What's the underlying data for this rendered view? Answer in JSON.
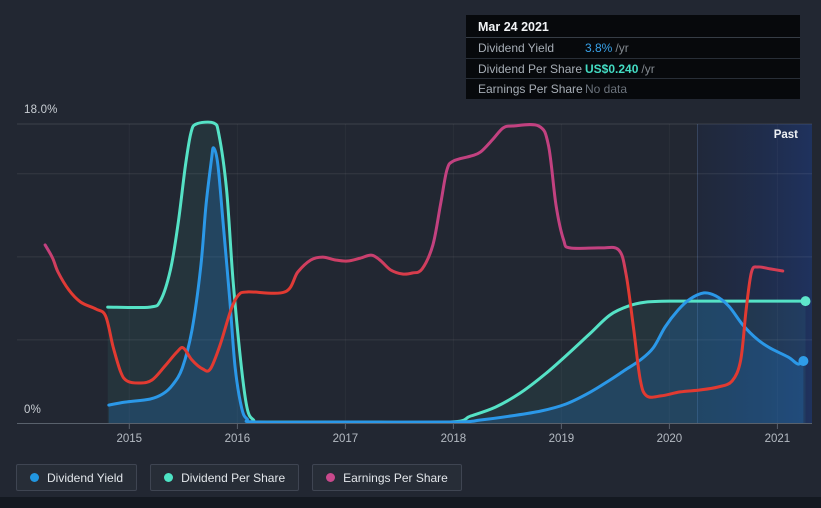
{
  "labels": {
    "past": "Past",
    "y_max": "18.0%",
    "y_min": "0%"
  },
  "tooltip": {
    "date": "Mar 24 2021",
    "rows": [
      {
        "label": "Dividend Yield",
        "value": "3.8%",
        "suffix": "/yr",
        "value_color": "#38a1e8",
        "bold": false
      },
      {
        "label": "Dividend Per Share",
        "value": "US$0.240",
        "suffix": "/yr",
        "value_color": "#43dcc3",
        "bold": true
      },
      {
        "label": "Earnings Per Share",
        "value": "No data",
        "suffix": "",
        "value_color": "#6b727b",
        "bold": false
      }
    ]
  },
  "legend": [
    {
      "label": "Dividend Yield",
      "color": "#2196e0"
    },
    {
      "label": "Dividend Per Share",
      "color": "#4de3c4"
    },
    {
      "label": "Earnings Per Share",
      "color": "#c9498c"
    }
  ],
  "chart_data": {
    "type": "line",
    "title": "",
    "xlabel": "",
    "ylabel": "percent (dividend yield axis)",
    "x_range": [
      2013.96,
      2021.32
    ],
    "y_range": [
      0,
      18
    ],
    "y_gridlines": [
      5,
      10,
      15,
      18
    ],
    "x_ticks": [
      {
        "year": 2015,
        "label": "2015"
      },
      {
        "year": 2016,
        "label": "2016"
      },
      {
        "year": 2017,
        "label": "2017"
      },
      {
        "year": 2018,
        "label": "2018"
      },
      {
        "year": 2019,
        "label": "2019"
      },
      {
        "year": 2020,
        "label": "2020"
      },
      {
        "year": 2021,
        "label": "2021"
      }
    ],
    "past_band_start": 2020.26,
    "colors": {
      "dividend_yield": "#2b98e8",
      "dividend_per_share": "#55e2c6",
      "eps_high": "#c24180",
      "eps_low": "#e23a31",
      "yield_fill": "rgba(30,120,200,0.26)",
      "dps_fill": "rgba(85,226,198,0.07)",
      "band_from": "rgba(20,50,120,0.12)",
      "band_to": "rgba(25,70,175,0.35)"
    },
    "series": [
      {
        "name": "Dividend Per Share",
        "unit": "visual % on yield axis (latest = US$0.240/yr)",
        "end_marker": true,
        "dot_color": "#5ee6cb",
        "points": [
          [
            2014.8,
            6.98
          ],
          [
            2015.19,
            6.98
          ],
          [
            2015.29,
            7.4
          ],
          [
            2015.38,
            9.21
          ],
          [
            2015.45,
            11.92
          ],
          [
            2015.52,
            15.53
          ],
          [
            2015.57,
            17.46
          ],
          [
            2015.62,
            18.0
          ],
          [
            2015.78,
            18.06
          ],
          [
            2015.83,
            17.34
          ],
          [
            2015.9,
            14.03
          ],
          [
            2015.96,
            8.61
          ],
          [
            2016.03,
            3.79
          ],
          [
            2016.09,
            0.9
          ],
          [
            2016.15,
            0.18
          ],
          [
            2016.21,
            0.06
          ],
          [
            2017.05,
            0.06
          ],
          [
            2017.97,
            0.06
          ],
          [
            2018.16,
            0.42
          ],
          [
            2018.39,
            0.96
          ],
          [
            2018.62,
            1.81
          ],
          [
            2018.85,
            2.95
          ],
          [
            2019.08,
            4.27
          ],
          [
            2019.27,
            5.42
          ],
          [
            2019.45,
            6.5
          ],
          [
            2019.62,
            7.04
          ],
          [
            2019.78,
            7.28
          ],
          [
            2020.01,
            7.34
          ],
          [
            2020.6,
            7.34
          ],
          [
            2021.26,
            7.34
          ]
        ]
      },
      {
        "name": "Dividend Yield",
        "unit": "%",
        "end_marker": true,
        "dot_color": "#2f9ce8",
        "points": [
          [
            2014.81,
            1.08
          ],
          [
            2014.96,
            1.26
          ],
          [
            2015.19,
            1.44
          ],
          [
            2015.31,
            1.75
          ],
          [
            2015.4,
            2.29
          ],
          [
            2015.49,
            3.31
          ],
          [
            2015.58,
            5.6
          ],
          [
            2015.66,
            9.33
          ],
          [
            2015.71,
            13.12
          ],
          [
            2015.76,
            15.83
          ],
          [
            2015.78,
            16.56
          ],
          [
            2015.82,
            15.53
          ],
          [
            2015.87,
            11.92
          ],
          [
            2015.93,
            7.4
          ],
          [
            2015.98,
            3.31
          ],
          [
            2016.04,
            0.9
          ],
          [
            2016.09,
            0.24
          ],
          [
            2016.17,
            0.06
          ],
          [
            2017.0,
            0.06
          ],
          [
            2018.02,
            0.06
          ],
          [
            2018.25,
            0.18
          ],
          [
            2018.53,
            0.42
          ],
          [
            2018.81,
            0.72
          ],
          [
            2019.04,
            1.14
          ],
          [
            2019.27,
            1.87
          ],
          [
            2019.45,
            2.59
          ],
          [
            2019.59,
            3.19
          ],
          [
            2019.73,
            3.79
          ],
          [
            2019.85,
            4.52
          ],
          [
            2019.96,
            5.78
          ],
          [
            2020.08,
            6.8
          ],
          [
            2020.19,
            7.46
          ],
          [
            2020.32,
            7.83
          ],
          [
            2020.43,
            7.65
          ],
          [
            2020.55,
            7.04
          ],
          [
            2020.68,
            5.9
          ],
          [
            2020.82,
            5.0
          ],
          [
            2020.95,
            4.45
          ],
          [
            2021.1,
            3.97
          ],
          [
            2021.19,
            3.55
          ],
          [
            2021.24,
            3.73
          ]
        ]
      },
      {
        "name": "Earnings Per Share",
        "unit": "visual % on yield axis (latest = No data)",
        "end_marker": false,
        "points": [
          [
            2014.22,
            10.72
          ],
          [
            2014.29,
            9.93
          ],
          [
            2014.34,
            9.09
          ],
          [
            2014.44,
            8.01
          ],
          [
            2014.55,
            7.28
          ],
          [
            2014.69,
            6.86
          ],
          [
            2014.78,
            6.44
          ],
          [
            2014.85,
            4.58
          ],
          [
            2014.92,
            3.07
          ],
          [
            2014.98,
            2.53
          ],
          [
            2015.1,
            2.41
          ],
          [
            2015.21,
            2.59
          ],
          [
            2015.33,
            3.43
          ],
          [
            2015.44,
            4.27
          ],
          [
            2015.5,
            4.52
          ],
          [
            2015.58,
            3.79
          ],
          [
            2015.68,
            3.25
          ],
          [
            2015.75,
            3.25
          ],
          [
            2015.84,
            4.7
          ],
          [
            2015.94,
            6.8
          ],
          [
            2016.01,
            7.7
          ],
          [
            2016.1,
            7.89
          ],
          [
            2016.44,
            7.89
          ],
          [
            2016.56,
            9.09
          ],
          [
            2016.68,
            9.81
          ],
          [
            2016.79,
            9.99
          ],
          [
            2016.91,
            9.81
          ],
          [
            2017.02,
            9.75
          ],
          [
            2017.14,
            9.93
          ],
          [
            2017.24,
            10.11
          ],
          [
            2017.32,
            9.81
          ],
          [
            2017.42,
            9.21
          ],
          [
            2017.53,
            8.97
          ],
          [
            2017.62,
            9.03
          ],
          [
            2017.71,
            9.27
          ],
          [
            2017.81,
            10.72
          ],
          [
            2017.88,
            13.12
          ],
          [
            2017.94,
            15.23
          ],
          [
            2018.0,
            15.77
          ],
          [
            2018.16,
            16.07
          ],
          [
            2018.25,
            16.31
          ],
          [
            2018.36,
            17.04
          ],
          [
            2018.46,
            17.76
          ],
          [
            2018.55,
            17.88
          ],
          [
            2018.79,
            17.88
          ],
          [
            2018.88,
            16.73
          ],
          [
            2018.95,
            13.12
          ],
          [
            2019.02,
            11.02
          ],
          [
            2019.08,
            10.54
          ],
          [
            2019.36,
            10.54
          ],
          [
            2019.53,
            10.42
          ],
          [
            2019.6,
            8.91
          ],
          [
            2019.67,
            5.6
          ],
          [
            2019.73,
            2.59
          ],
          [
            2019.79,
            1.63
          ],
          [
            2019.92,
            1.63
          ],
          [
            2020.1,
            1.87
          ],
          [
            2020.29,
            1.99
          ],
          [
            2020.45,
            2.17
          ],
          [
            2020.58,
            2.53
          ],
          [
            2020.66,
            3.79
          ],
          [
            2020.71,
            6.8
          ],
          [
            2020.76,
            9.09
          ],
          [
            2020.82,
            9.39
          ],
          [
            2020.94,
            9.27
          ],
          [
            2021.05,
            9.15
          ]
        ]
      }
    ]
  }
}
